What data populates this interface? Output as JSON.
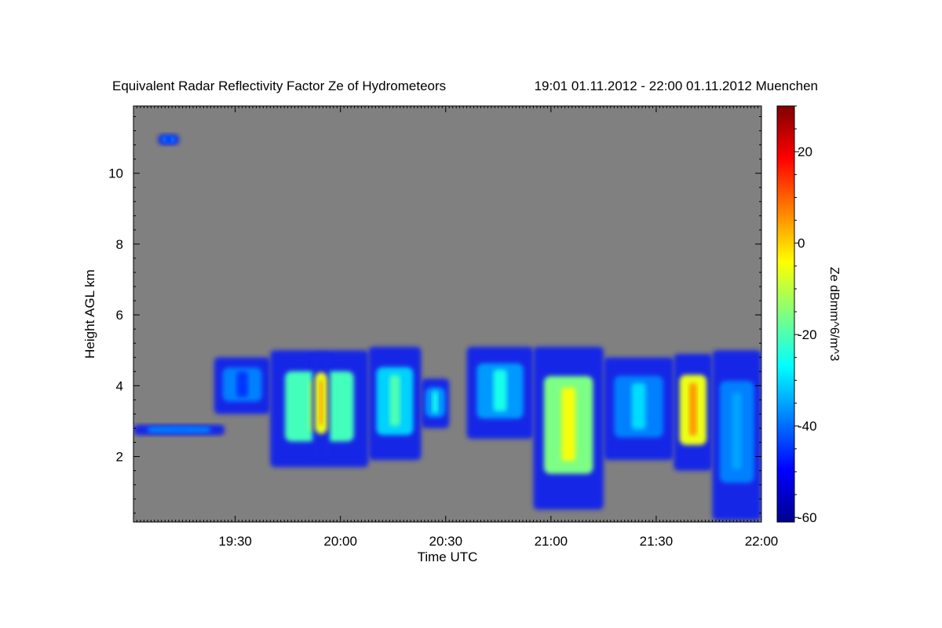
{
  "chart_data": {
    "type": "heatmap",
    "title": "Equivalent Radar Reflectivity Factor Ze of Hydrometeors",
    "subtitle": "19:01 01.11.2012 - 22:00 01.11.2012 Muenchen",
    "xlabel": "Time UTC",
    "ylabel": "Height AGL km",
    "xlim": [
      "19:01",
      "22:00"
    ],
    "ylim": [
      0.15,
      11.9
    ],
    "x_ticks": [
      "19:30",
      "20:00",
      "20:30",
      "21:00",
      "21:30",
      "22:00"
    ],
    "y_ticks": [
      2,
      4,
      6,
      8,
      10
    ],
    "background_color": "#808080",
    "colorbar": {
      "label": "Ze dBmm^6/m^3",
      "range": [
        -61,
        30
      ],
      "ticks": [
        -60,
        -40,
        -20,
        0,
        20
      ],
      "colormap": "jet"
    },
    "cloud_features": [
      {
        "start": "19:01",
        "end": "19:27",
        "base_km": 2.6,
        "top_km": 2.9,
        "ze_dbz": -40
      },
      {
        "start": "19:08",
        "end": "19:14",
        "base_km": 10.8,
        "top_km": 11.1,
        "ze_dbz": -50
      },
      {
        "start": "19:24",
        "end": "19:40",
        "base_km": 3.2,
        "top_km": 4.8,
        "ze_dbz": -45
      },
      {
        "start": "19:40",
        "end": "20:08",
        "base_km": 1.7,
        "top_km": 5.0,
        "ze_dbz": -10
      },
      {
        "start": "19:52",
        "end": "19:57",
        "base_km": 2.0,
        "top_km": 4.9,
        "ze_dbz": 5
      },
      {
        "start": "20:08",
        "end": "20:23",
        "base_km": 1.9,
        "top_km": 5.1,
        "ze_dbz": -20
      },
      {
        "start": "20:23",
        "end": "20:31",
        "base_km": 2.8,
        "top_km": 4.2,
        "ze_dbz": -25
      },
      {
        "start": "20:36",
        "end": "20:55",
        "base_km": 2.5,
        "top_km": 5.1,
        "ze_dbz": -25
      },
      {
        "start": "20:55",
        "end": "21:15",
        "base_km": 0.5,
        "top_km": 5.1,
        "ze_dbz": -5
      },
      {
        "start": "21:15",
        "end": "21:35",
        "base_km": 1.9,
        "top_km": 4.8,
        "ze_dbz": -30
      },
      {
        "start": "21:35",
        "end": "21:46",
        "base_km": 1.6,
        "top_km": 4.9,
        "ze_dbz": 5
      },
      {
        "start": "21:46",
        "end": "22:00",
        "base_km": 0.2,
        "top_km": 5.0,
        "ze_dbz": -35
      }
    ]
  }
}
